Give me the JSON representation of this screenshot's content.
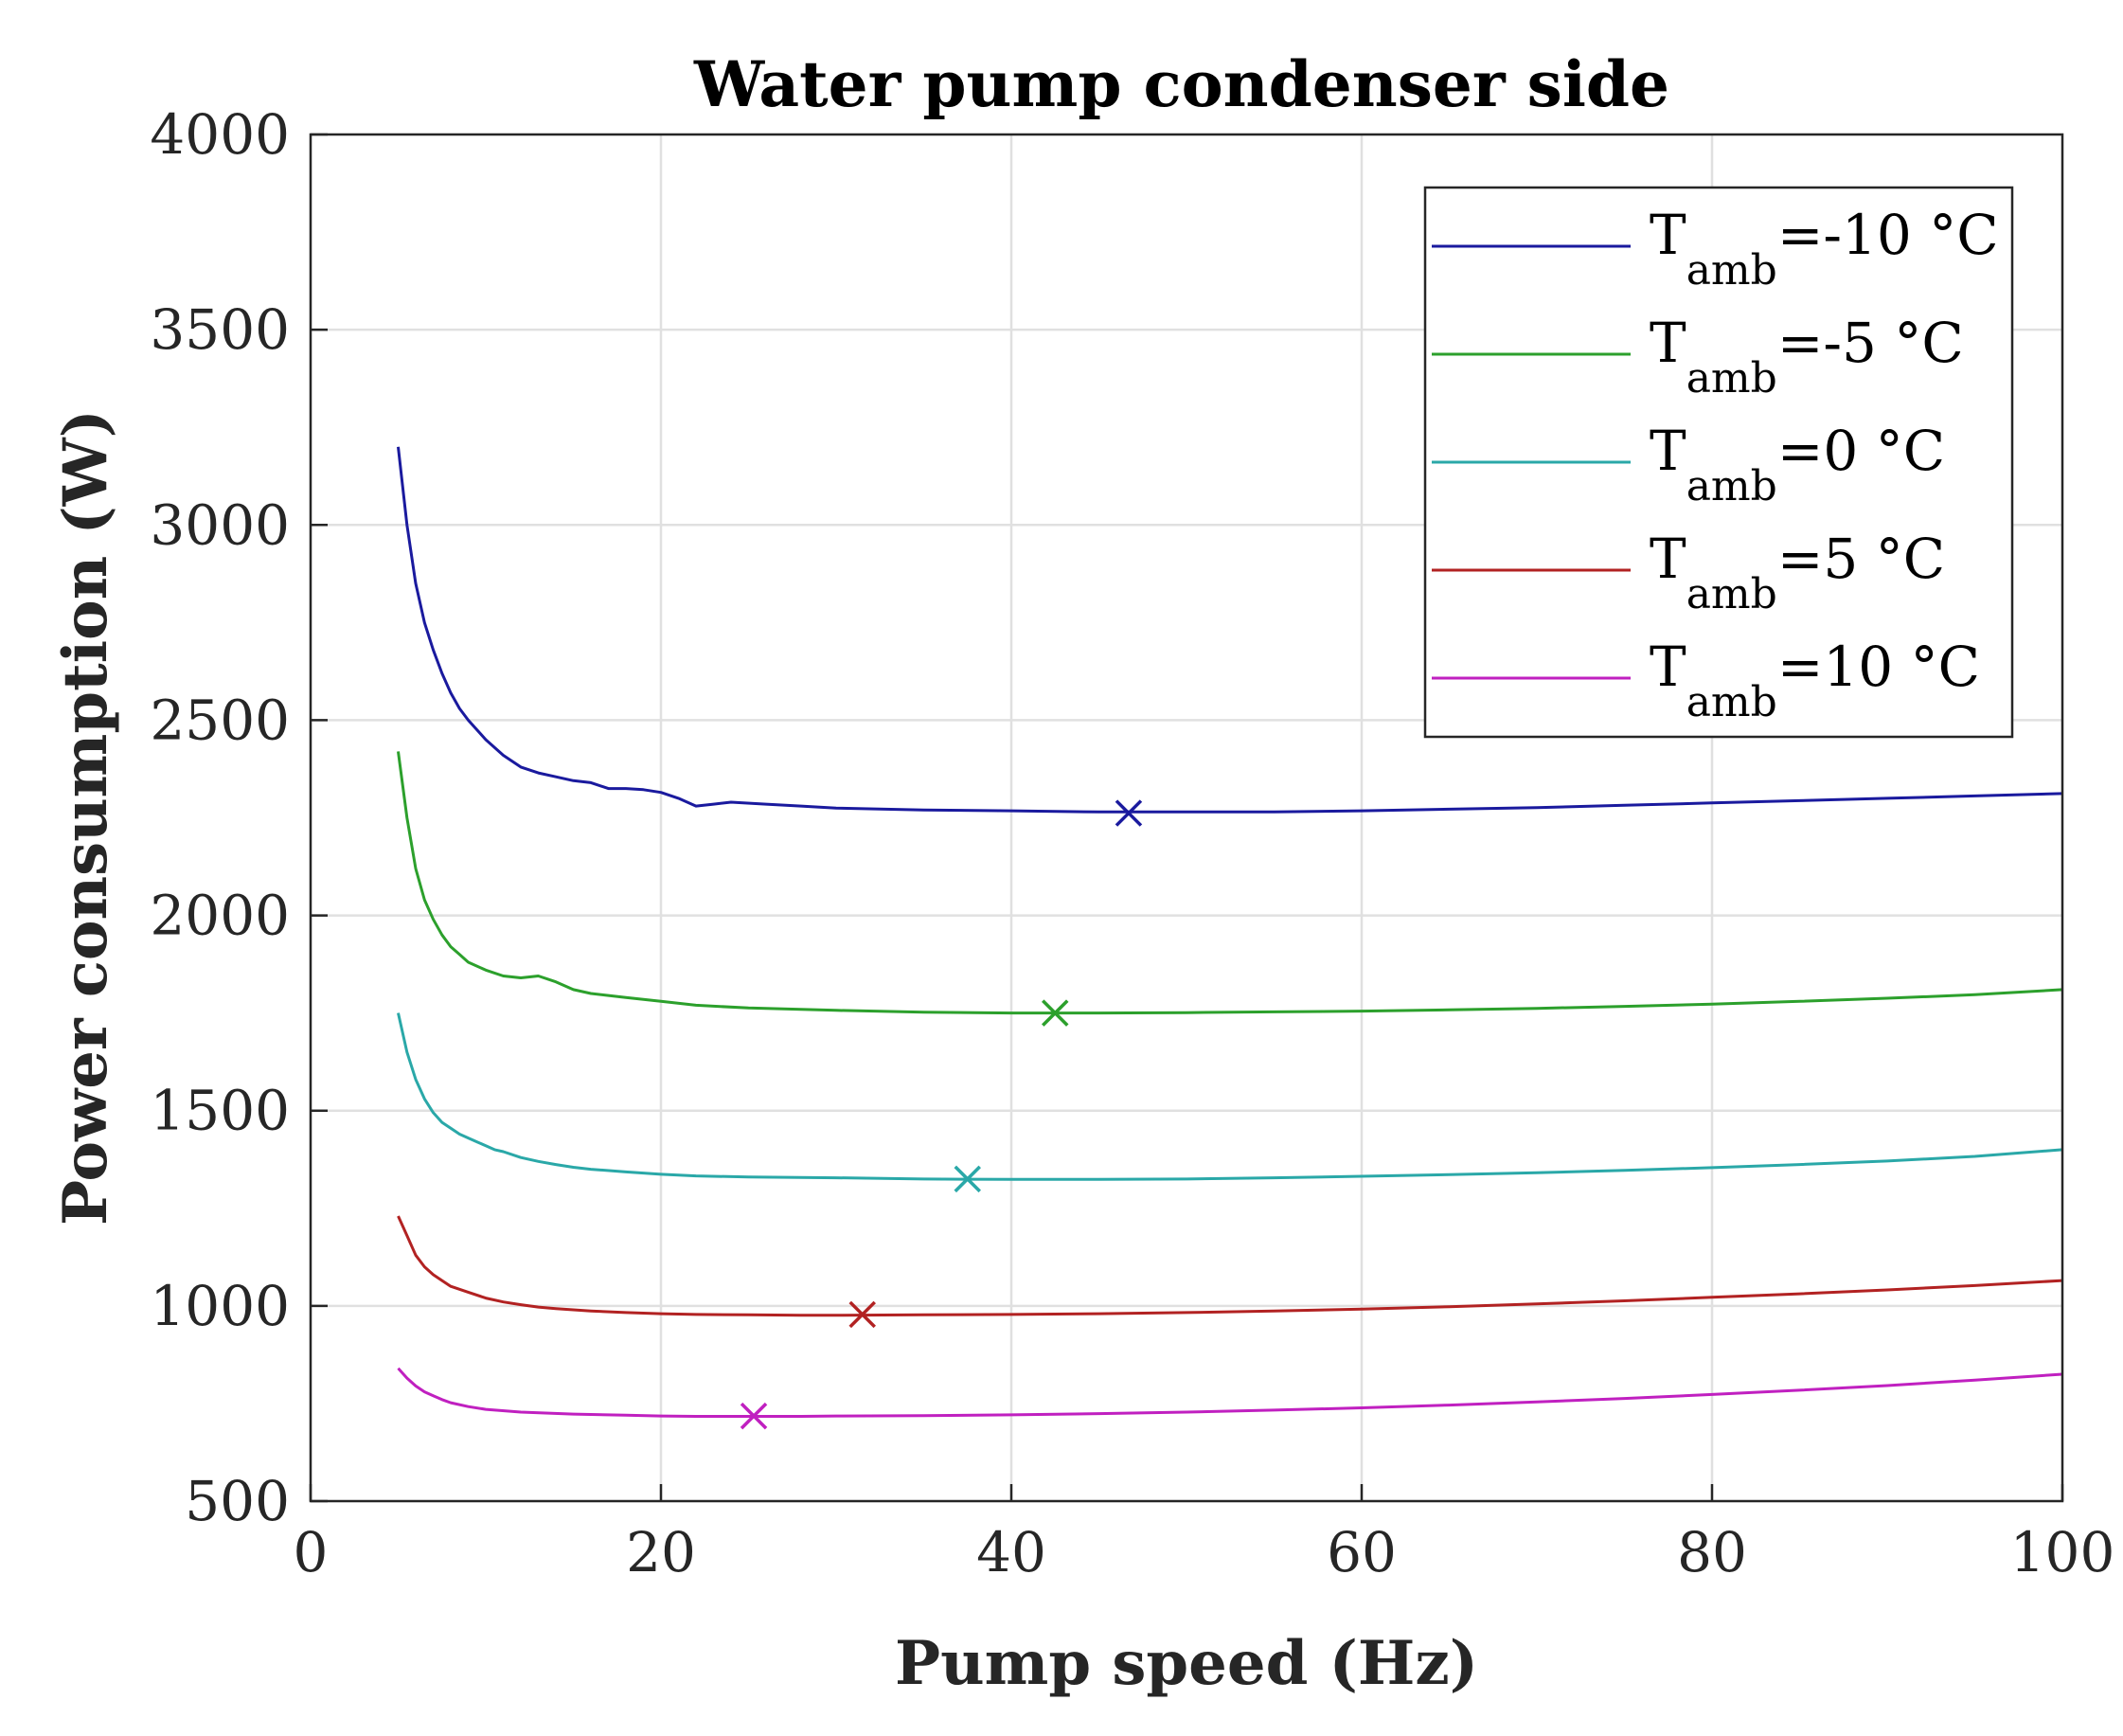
{
  "chart_data": {
    "type": "line",
    "title": "Water pump condenser side",
    "xlabel": "Pump speed (Hz)",
    "ylabel": "Power consumption (W)",
    "xlim": [
      0,
      100
    ],
    "ylim": [
      500,
      4000
    ],
    "xticks": [
      0,
      20,
      40,
      60,
      80,
      100
    ],
    "yticks": [
      500,
      1000,
      1500,
      2000,
      2500,
      3000,
      3500,
      4000
    ],
    "grid": true,
    "legend_position": "top-right",
    "series": [
      {
        "legend_main": "T",
        "legend_sub": "amb",
        "legend_rest": "=-10 °C",
        "color": "#1a1a9e",
        "x": [
          5,
          5.5,
          6,
          6.5,
          7,
          7.5,
          8,
          8.5,
          9,
          10,
          11,
          12,
          13,
          14,
          15,
          16,
          17,
          18,
          19,
          20,
          21,
          22,
          23,
          24,
          26,
          28,
          30,
          35,
          40,
          45,
          50,
          55,
          60,
          65,
          70,
          75,
          80,
          85,
          90,
          95,
          100
        ],
        "y": [
          3200,
          3000,
          2850,
          2750,
          2680,
          2620,
          2570,
          2530,
          2500,
          2450,
          2410,
          2380,
          2365,
          2355,
          2345,
          2340,
          2325,
          2325,
          2322,
          2315,
          2300,
          2280,
          2285,
          2290,
          2285,
          2280,
          2275,
          2270,
          2268,
          2265,
          2265,
          2265,
          2268,
          2272,
          2276,
          2282,
          2288,
          2294,
          2300,
          2306,
          2312
        ],
        "optimum": {
          "x": 46.7,
          "y": 2262
        }
      },
      {
        "legend_main": "T",
        "legend_sub": "amb",
        "legend_rest": "=-5 °C",
        "color": "#2ca02c",
        "x": [
          5,
          5.5,
          6,
          6.5,
          7,
          7.5,
          8,
          8.5,
          9,
          10,
          11,
          12,
          13,
          14,
          15,
          16,
          17,
          18,
          20,
          22,
          25,
          30,
          35,
          40,
          45,
          50,
          55,
          60,
          65,
          70,
          75,
          80,
          85,
          90,
          95,
          100
        ],
        "y": [
          2420,
          2250,
          2120,
          2040,
          1990,
          1950,
          1920,
          1900,
          1880,
          1860,
          1845,
          1840,
          1845,
          1830,
          1810,
          1800,
          1795,
          1790,
          1780,
          1770,
          1763,
          1757,
          1752,
          1750,
          1750,
          1751,
          1753,
          1755,
          1758,
          1762,
          1767,
          1773,
          1780,
          1788,
          1797,
          1810
        ],
        "optimum": {
          "x": 42.5,
          "y": 1750
        }
      },
      {
        "legend_main": "T",
        "legend_sub": "amb",
        "legend_rest": "=0 °C",
        "color": "#2aa8a8",
        "x": [
          5,
          5.5,
          6,
          6.5,
          7,
          7.5,
          8,
          8.5,
          9,
          9.5,
          10,
          10.5,
          11,
          12,
          13,
          14,
          15,
          16,
          18,
          20,
          22,
          25,
          30,
          35,
          40,
          45,
          50,
          55,
          60,
          65,
          70,
          75,
          80,
          85,
          90,
          95,
          100
        ],
        "y": [
          1750,
          1650,
          1580,
          1530,
          1495,
          1470,
          1455,
          1440,
          1430,
          1420,
          1410,
          1400,
          1395,
          1380,
          1370,
          1362,
          1355,
          1350,
          1343,
          1337,
          1333,
          1330,
          1328,
          1325,
          1324,
          1324,
          1325,
          1328,
          1332,
          1336,
          1341,
          1347,
          1354,
          1362,
          1371,
          1383,
          1400
        ],
        "optimum": {
          "x": 37.5,
          "y": 1325
        }
      },
      {
        "legend_main": "T",
        "legend_sub": "amb",
        "legend_rest": "=5 °C",
        "color": "#b22222",
        "x": [
          5,
          5.5,
          6,
          6.5,
          7,
          7.5,
          8,
          9,
          10,
          11,
          12,
          13,
          14,
          15,
          16,
          18,
          20,
          22,
          25,
          28,
          30,
          35,
          40,
          45,
          50,
          55,
          60,
          65,
          70,
          75,
          80,
          85,
          90,
          95,
          100
        ],
        "y": [
          1230,
          1180,
          1130,
          1100,
          1080,
          1065,
          1050,
          1035,
          1020,
          1010,
          1003,
          997,
          993,
          990,
          987,
          983,
          980,
          978,
          977,
          976,
          976,
          977,
          978,
          980,
          983,
          987,
          992,
          998,
          1005,
          1013,
          1022,
          1031,
          1041,
          1052,
          1065
        ],
        "optimum": {
          "x": 31.5,
          "y": 978
        }
      },
      {
        "legend_main": "T",
        "legend_sub": "amb",
        "legend_rest": "=10 °C",
        "color": "#c020c0",
        "x": [
          5,
          5.5,
          6,
          6.5,
          7,
          7.5,
          8,
          9,
          10,
          12,
          15,
          18,
          20,
          22,
          25,
          28,
          30,
          35,
          40,
          45,
          50,
          55,
          60,
          65,
          70,
          75,
          80,
          85,
          90,
          95,
          100
        ],
        "y": [
          840,
          815,
          795,
          780,
          770,
          760,
          752,
          742,
          735,
          728,
          723,
          720,
          718,
          717,
          717,
          717,
          718,
          719,
          721,
          724,
          728,
          733,
          739,
          746,
          754,
          763,
          773,
          784,
          796,
          810,
          825
        ],
        "optimum": {
          "x": 25.3,
          "y": 718
        }
      }
    ]
  }
}
